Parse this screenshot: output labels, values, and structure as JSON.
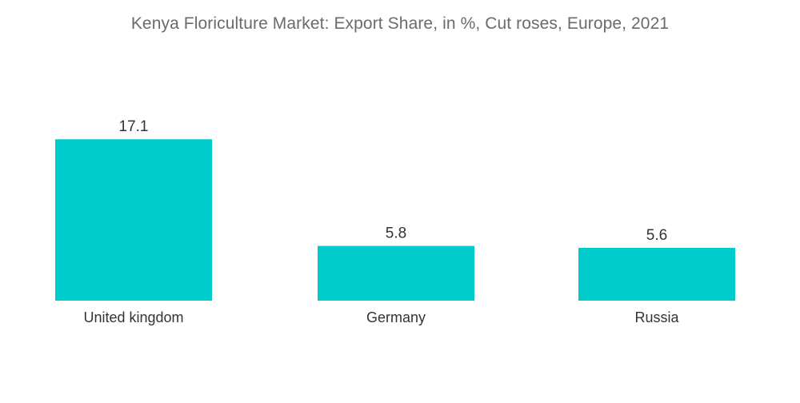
{
  "chart_data": {
    "type": "bar",
    "title": "Kenya Floriculture Market: Export Share, in %, Cut roses, Europe, 2021",
    "categories": [
      "United kingdom",
      "Germany",
      "Russia"
    ],
    "values": [
      17.1,
      5.8,
      5.6
    ],
    "value_labels": [
      "17.1",
      "5.8",
      "5.6"
    ],
    "xlabel": "",
    "ylabel": "",
    "grid": false,
    "legend": "none",
    "bar_color": "#00cccc"
  }
}
